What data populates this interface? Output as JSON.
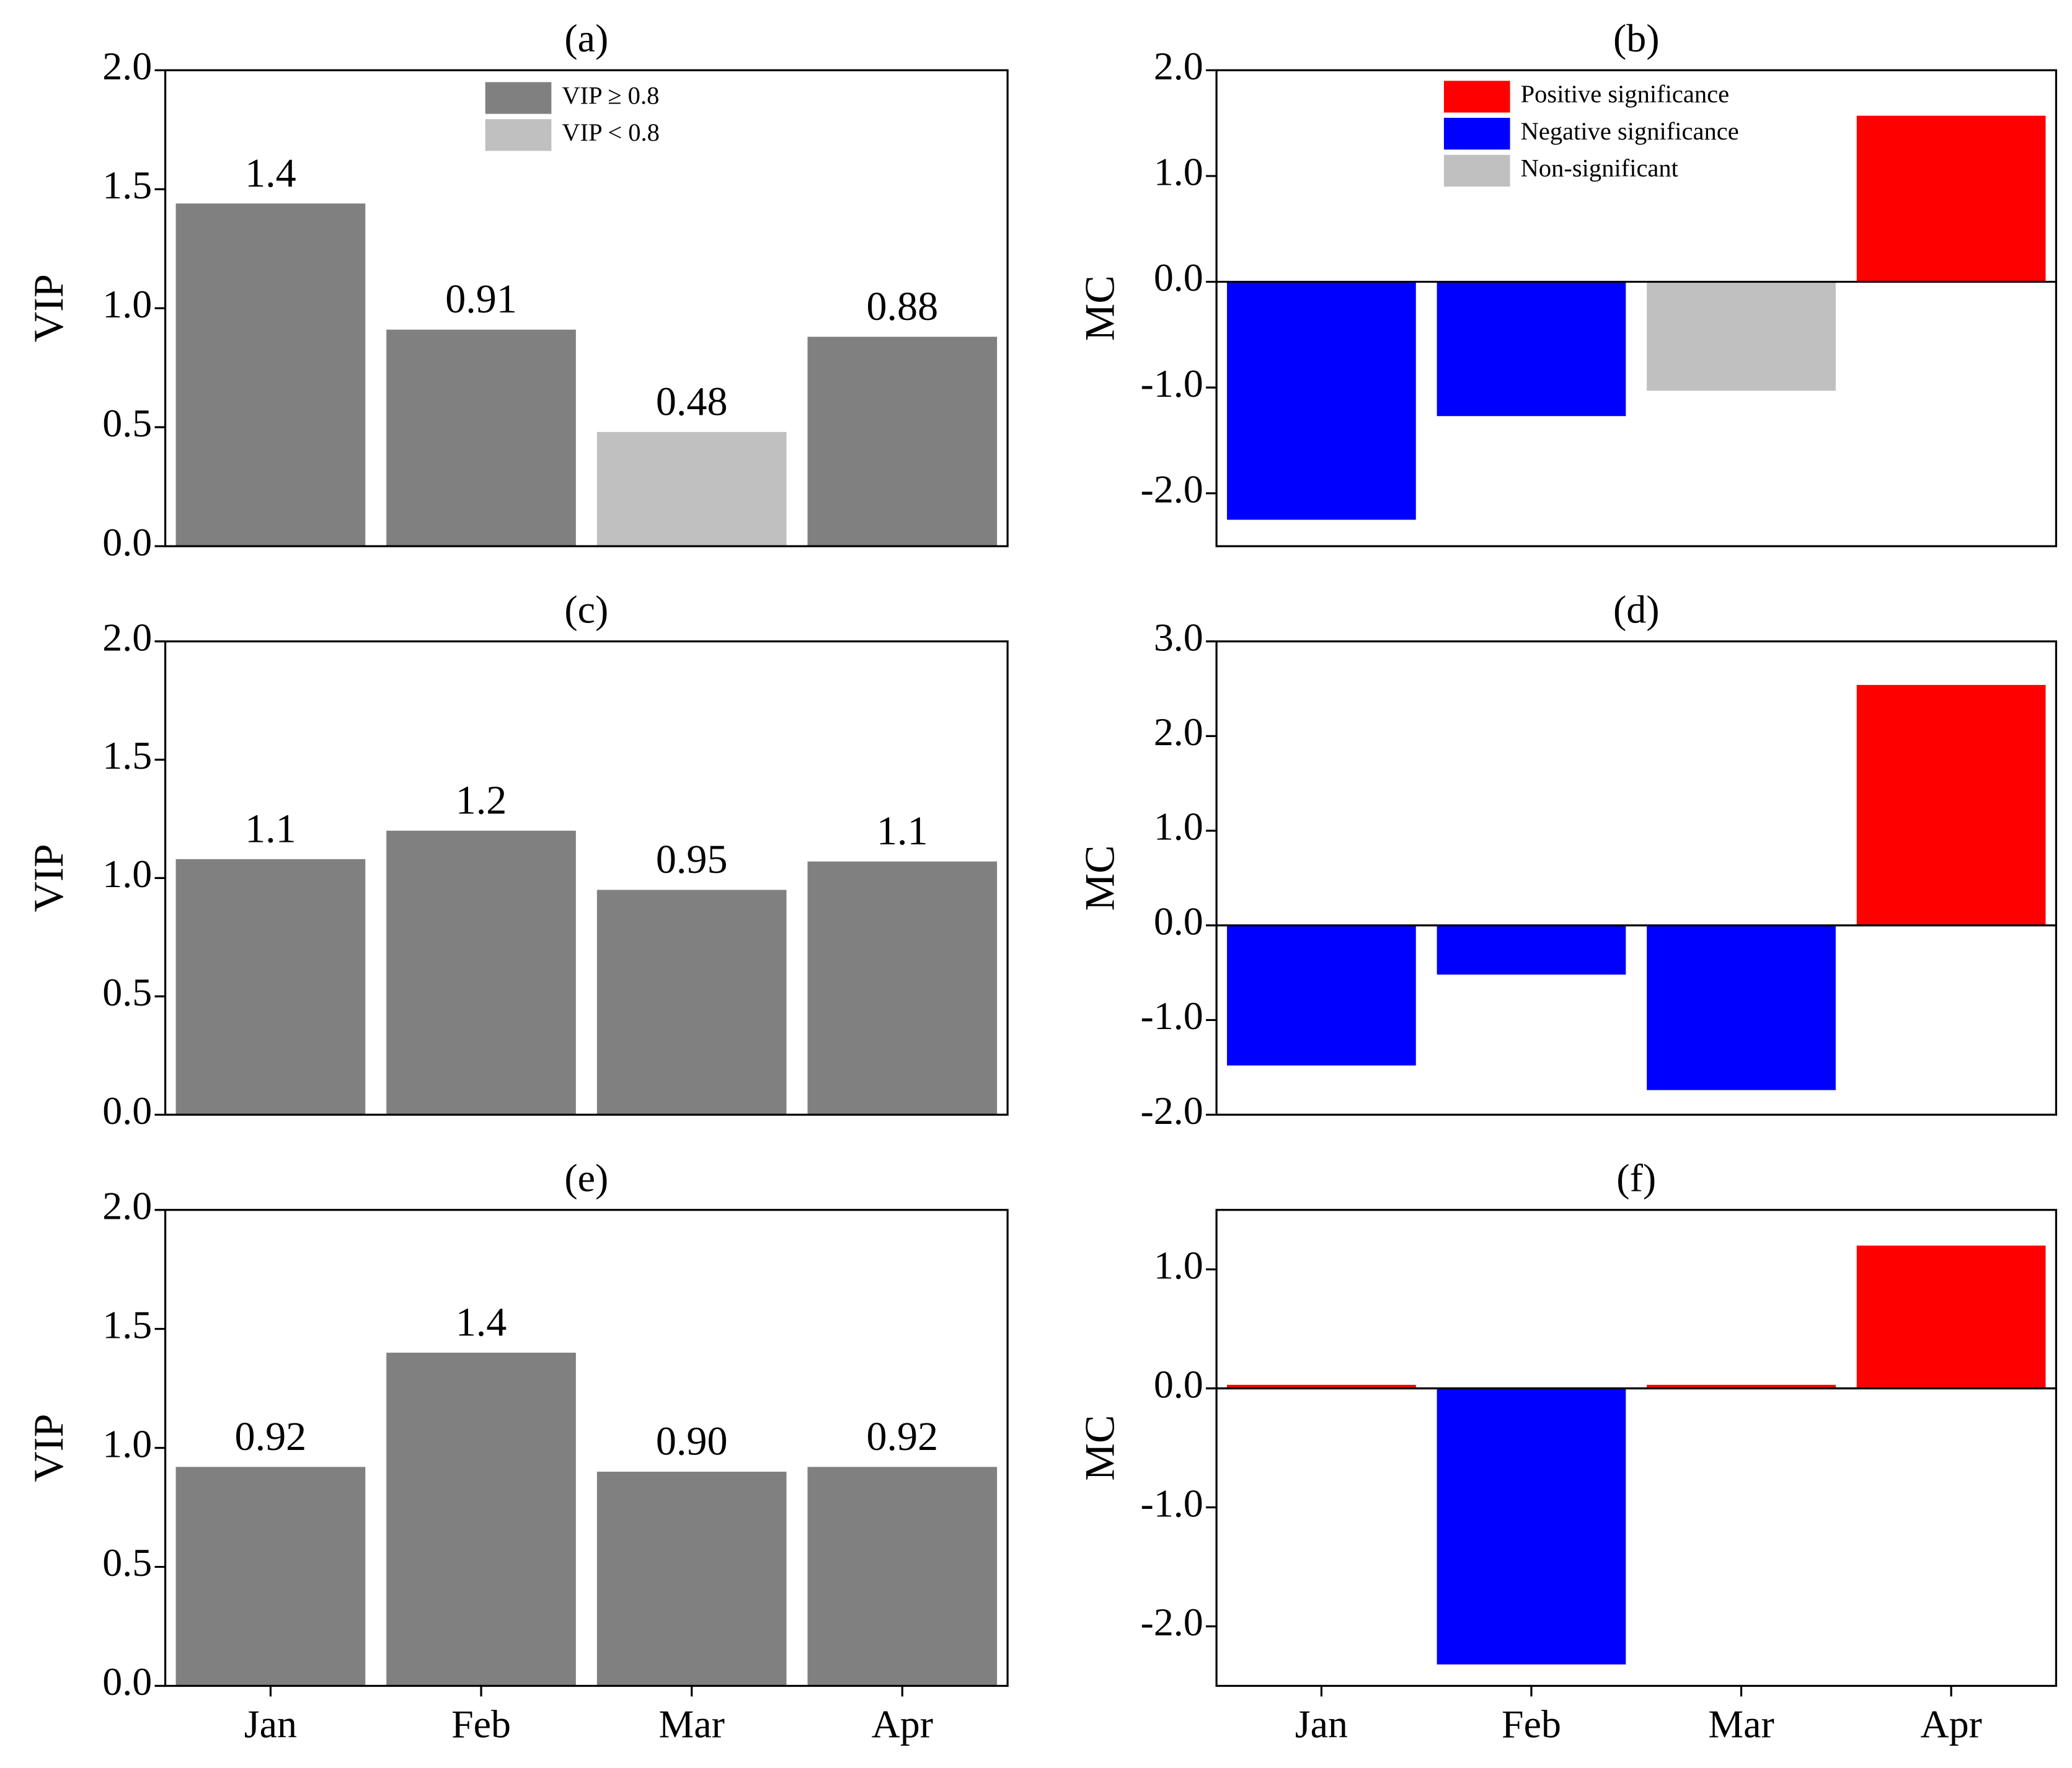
{
  "chart_data": [
    {
      "type": "bar",
      "title": "(a)",
      "ylabel": "VIP",
      "values": [
        1.44,
        0.91,
        0.48,
        0.88
      ],
      "value_labels": [
        "1.4",
        "0.91",
        "0.48",
        "0.88"
      ],
      "colors": [
        "#808080",
        "#808080",
        "#c0c0c0",
        "#808080"
      ],
      "legend": [
        {
          "name": "VIP ≥ 0.8",
          "color": "#808080"
        },
        {
          "name": "VIP < 0.8",
          "color": "#c0c0c0"
        }
      ],
      "ylim": [
        0,
        2.0
      ],
      "yticks": [
        {
          "value": 0,
          "label": "0.0"
        },
        0.5,
        {
          "value": 1,
          "label": "1.0"
        },
        1.5,
        {
          "value": 2,
          "label": "2.0"
        }
      ]
    },
    {
      "type": "bar",
      "title": "(b)",
      "ylabel": "MC",
      "values": [
        -2.25,
        -1.27,
        -1.03,
        1.57
      ],
      "colors": [
        "#0000ff",
        "#0000ff",
        "#c0c0c0",
        "#ff0000"
      ],
      "legend": [
        {
          "name": "Positive significance",
          "color": "#ff0000"
        },
        {
          "name": "Negative significance",
          "color": "#0000ff"
        },
        {
          "name": "Non-significant",
          "color": "#c0c0c0"
        }
      ],
      "ylim": [
        -2.5,
        2.0
      ],
      "yticks": [
        {
          "value": -2,
          "label": "-2.0"
        },
        {
          "value": -1,
          "label": "-1.0"
        },
        {
          "value": 0,
          "label": "0.0"
        },
        {
          "value": 1,
          "label": "1.0"
        },
        {
          "value": 2,
          "label": "2.0"
        }
      ]
    },
    {
      "type": "bar",
      "title": "(c)",
      "ylabel": "VIP",
      "values": [
        1.08,
        1.2,
        0.95,
        1.07
      ],
      "value_labels": [
        "1.1",
        "1.2",
        "0.95",
        "1.1"
      ],
      "color": "#808080",
      "ylim": [
        0,
        2.0
      ],
      "yticks": [
        {
          "value": 0,
          "label": "0.0"
        },
        0.5,
        {
          "value": 1,
          "label": "1.0"
        },
        1.5,
        {
          "value": 2,
          "label": "2.0"
        }
      ]
    },
    {
      "type": "bar",
      "title": "(d)",
      "ylabel": "MC",
      "values": [
        -1.48,
        -0.52,
        -1.74,
        2.54
      ],
      "colors": [
        "#0000ff",
        "#0000ff",
        "#0000ff",
        "#ff0000"
      ],
      "ylim": [
        -2.0,
        3.0
      ],
      "yticks": [
        {
          "value": -2,
          "label": "-2.0"
        },
        {
          "value": -1,
          "label": "-1.0"
        },
        {
          "value": 0,
          "label": "0.0"
        },
        {
          "value": 1,
          "label": "1.0"
        },
        {
          "value": 2,
          "label": "2.0"
        },
        {
          "value": 3,
          "label": "3.0"
        }
      ]
    },
    {
      "type": "bar",
      "title": "(e)",
      "ylabel": "VIP",
      "categories": [
        "Jan",
        "Feb",
        "Mar",
        "Apr"
      ],
      "values": [
        0.92,
        1.4,
        0.9,
        0.92
      ],
      "value_labels": [
        "0.92",
        "1.4",
        "0.90",
        "0.92"
      ],
      "color": "#808080",
      "ylim": [
        0,
        2.0
      ],
      "yticks": [
        {
          "value": 0,
          "label": "0.0"
        },
        0.5,
        {
          "value": 1,
          "label": "1.0"
        },
        1.5,
        {
          "value": 2,
          "label": "2.0"
        }
      ]
    },
    {
      "type": "bar",
      "title": "(f)",
      "ylabel": "MC",
      "categories": [
        "Jan",
        "Feb",
        "Mar",
        "Apr"
      ],
      "values": [
        0.03,
        -2.32,
        0.03,
        1.2
      ],
      "colors": [
        "#ff0000",
        "#0000ff",
        "#ff0000",
        "#ff0000"
      ],
      "ylim": [
        -2.5,
        1.5
      ],
      "yticks": [
        {
          "value": -2,
          "label": "-2.0"
        },
        {
          "value": -1,
          "label": "-1.0"
        },
        {
          "value": 0,
          "label": "0.0"
        },
        {
          "value": 1,
          "label": "1.0"
        }
      ]
    }
  ]
}
